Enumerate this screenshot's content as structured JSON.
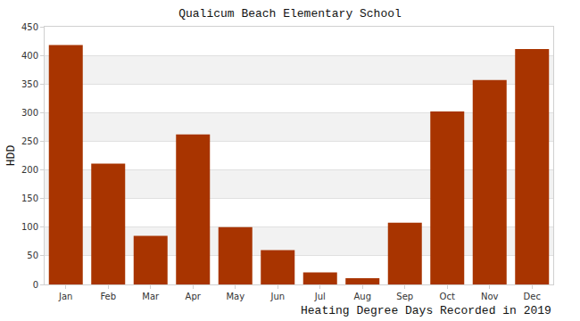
{
  "chart_data": {
    "type": "bar",
    "title": "Qualicum Beach Elementary School",
    "ylabel": "HDD",
    "xlabel": "Heating Degree Days Recorded in 2019",
    "categories": [
      "Jan",
      "Feb",
      "Mar",
      "Apr",
      "May",
      "Jun",
      "Jul",
      "Aug",
      "Sep",
      "Oct",
      "Nov",
      "Dec"
    ],
    "values": [
      418,
      211,
      85,
      262,
      100,
      60,
      21,
      11,
      108,
      302,
      357,
      411
    ],
    "color": "#a83400",
    "ylim": [
      0,
      450
    ],
    "yticks": [
      0,
      50,
      100,
      150,
      200,
      250,
      300,
      350,
      400,
      450
    ],
    "grid": true
  }
}
